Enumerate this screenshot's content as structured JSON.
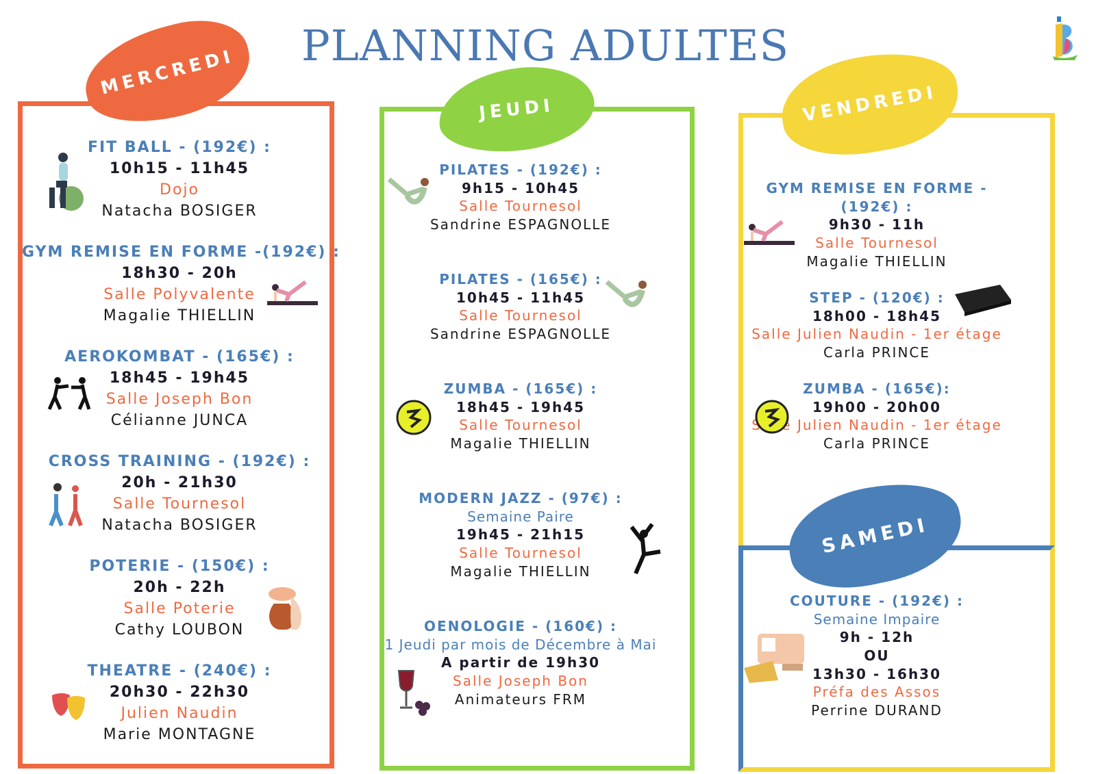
{
  "header": {
    "title": "PLANNING ADULTES"
  },
  "days": {
    "mercredi": "MERCREDI",
    "jeudi": "JEUDI",
    "vendredi": "VENDREDI",
    "samedi": "SAMEDI"
  },
  "mercredi": [
    {
      "title": "FIT BALL - (192€) :",
      "time": "10h15 - 11h45",
      "room": "Dojo",
      "teacher": "Natacha BOSIGER",
      "icon": "fitball-icon"
    },
    {
      "title": "GYM REMISE EN FORME -(192€) :",
      "time": "18h30 - 20h",
      "room": "Salle Polyvalente",
      "teacher": "Magalie THIELLIN",
      "icon": "yoga-mat-icon"
    },
    {
      "title": "AEROKOMBAT - (165€) :",
      "time": "18h45 - 19h45",
      "room": "Salle Joseph Bon",
      "teacher": "Célianne JUNCA",
      "icon": "boxing-icon"
    },
    {
      "title": "CROSS TRAINING - (192€) :",
      "time": "20h - 21h30",
      "room": "Salle Tournesol",
      "teacher": "Natacha BOSIGER",
      "icon": "cross-training-icon"
    },
    {
      "title": "POTERIE - (150€) :",
      "time": "20h - 22h",
      "room": "Salle Poterie",
      "teacher": "Cathy LOUBON",
      "icon": "pottery-icon"
    },
    {
      "title": "THEATRE - (240€) :",
      "time": "20h30 - 22h30",
      "room": "Julien Naudin",
      "teacher": "Marie MONTAGNE",
      "icon": "theatre-masks-icon"
    }
  ],
  "jeudi": [
    {
      "title": "PILATES - (192€) :",
      "time": "9h15 - 10h45",
      "room": "Salle Tournesol",
      "teacher": "Sandrine ESPAGNOLLE",
      "icon": "pilates-icon"
    },
    {
      "title": "PILATES - (165€) :",
      "time": "10h45 - 11h45",
      "room": "Salle Tournesol",
      "teacher": "Sandrine ESPAGNOLLE",
      "icon": "pilates-icon"
    },
    {
      "title": "ZUMBA - (165€) :",
      "time": "18h45 - 19h45",
      "room": "Salle Tournesol",
      "teacher": "Magalie THIELLIN",
      "icon": "zumba-icon"
    },
    {
      "title": "MODERN JAZZ - (97€) :",
      "note": "Semaine Paire",
      "time": "19h45 - 21h15",
      "room": "Salle Tournesol",
      "teacher": "Magalie THIELLIN",
      "icon": "dancer-icon"
    },
    {
      "title": "OENOLOGIE - (160€) :",
      "note": "1 Jeudi par mois de Décembre à Mai",
      "time": "A partir de 19h30",
      "room": "Salle Joseph Bon",
      "teacher": "Animateurs FRM",
      "icon": "wine-icon"
    }
  ],
  "vendredi": [
    {
      "title": "GYM REMISE EN FORME -",
      "title2": "(192€) :",
      "time": "9h30 - 11h",
      "room": "Salle Tournesol",
      "teacher": "Magalie THIELLIN",
      "icon": "yoga-mat-icon"
    },
    {
      "title": "STEP - (120€) :",
      "time": "18h00 - 18h45",
      "room": "Salle Julien Naudin - 1er étage",
      "teacher": "Carla PRINCE",
      "icon": "step-icon"
    },
    {
      "title": "ZUMBA - (165€):",
      "time": "19h00 - 20h00",
      "room": "Salle Julien Naudin - 1er étage",
      "teacher": "Carla PRINCE",
      "icon": "zumba-icon"
    }
  ],
  "samedi": [
    {
      "title": "COUTURE - (192€) :",
      "note": "Semaine Impaire",
      "time": "9h - 12h",
      "or": "OU",
      "time2": "13h30 - 16h30",
      "room": "Préfa des Assos",
      "teacher": "Perrine DURAND",
      "icon": "sewing-machine-icon"
    }
  ],
  "colors": {
    "orange": "#ee6940",
    "green": "#8fd244",
    "yellow": "#f5d63b",
    "blue": "#4a7fb8"
  }
}
